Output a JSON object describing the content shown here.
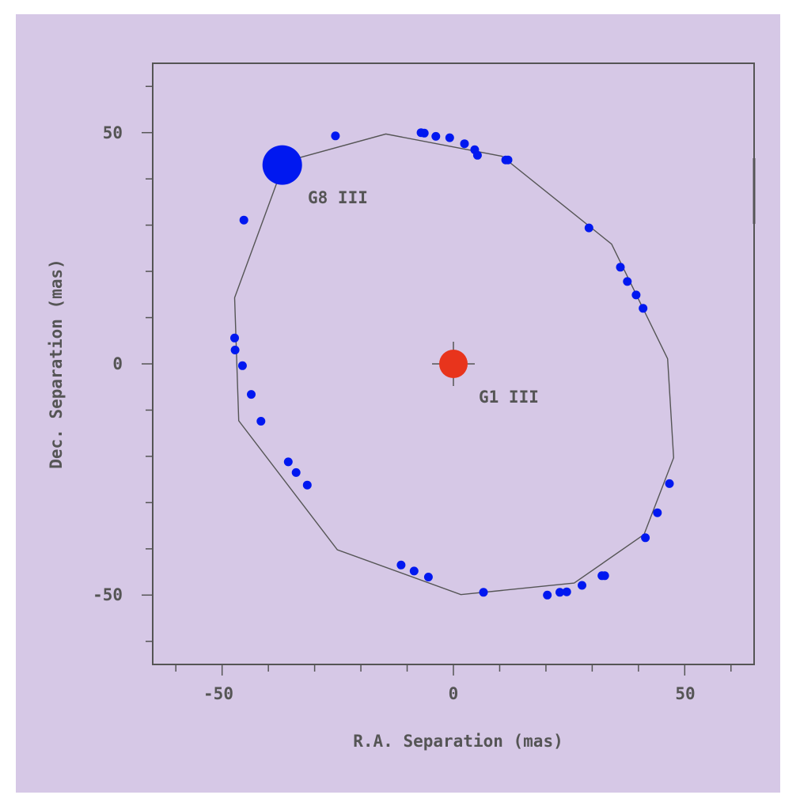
{
  "colors": {
    "background": "#d6c8e6",
    "axis": "#555555",
    "orbit": "#555555",
    "secondary": "#0018f0",
    "primary": "#e8341c"
  },
  "chart_data": {
    "type": "scatter",
    "title": "",
    "xlabel": "R.A. Separation (mas)",
    "ylabel": "Dec. Separation (mas)",
    "xlim": [
      -65,
      65
    ],
    "ylim": [
      -65,
      65
    ],
    "x_ticks": [
      -50,
      0,
      50
    ],
    "y_ticks": [
      50,
      0,
      -50
    ],
    "x_tick_labels": [
      "-50",
      "0",
      "50"
    ],
    "y_tick_labels": [
      "50",
      "0",
      "-50"
    ],
    "grid": false,
    "orbit": {
      "center": [
        0,
        0
      ],
      "vertices": [
        [
          -47.3,
          14.3
        ],
        [
          -36.5,
          43.7
        ],
        [
          -14.6,
          49.7
        ],
        [
          10.5,
          44.9
        ],
        [
          34.2,
          25.9
        ],
        [
          46.3,
          1.1
        ],
        [
          47.6,
          -20.3
        ],
        [
          41.2,
          -36.9
        ],
        [
          26.1,
          -47.4
        ],
        [
          1.6,
          -49.9
        ],
        [
          -25.1,
          -40.2
        ],
        [
          -46.4,
          -12.3
        ]
      ]
    },
    "series": [
      {
        "points": [
          [
            -25.5,
            49.3
          ],
          [
            -7.0,
            50.0
          ],
          [
            -6.3,
            49.9
          ],
          [
            -3.8,
            49.2
          ],
          [
            -0.8,
            48.9
          ],
          [
            2.4,
            47.6
          ],
          [
            4.6,
            46.3
          ],
          [
            5.2,
            45.1
          ],
          [
            11.3,
            44.1
          ],
          [
            11.8,
            44.1
          ],
          [
            29.3,
            29.4
          ],
          [
            36.1,
            20.9
          ],
          [
            37.6,
            17.8
          ],
          [
            39.5,
            14.9
          ],
          [
            41.0,
            12.0
          ],
          [
            -47.3,
            5.6
          ],
          [
            -47.2,
            3.0
          ],
          [
            -45.6,
            -0.4
          ],
          [
            -43.7,
            -6.6
          ],
          [
            -41.6,
            -12.4
          ],
          [
            -35.7,
            -21.2
          ],
          [
            -34.0,
            -23.5
          ],
          [
            -31.6,
            -26.2
          ],
          [
            -11.3,
            -43.5
          ],
          [
            -8.5,
            -44.8
          ],
          [
            -5.4,
            -46.1
          ],
          [
            6.5,
            -49.4
          ],
          [
            20.3,
            -50.0
          ],
          [
            23.0,
            -49.4
          ],
          [
            24.5,
            -49.3
          ],
          [
            27.8,
            -47.9
          ],
          [
            32.1,
            -45.8
          ],
          [
            32.7,
            -45.8
          ],
          [
            41.5,
            -37.6
          ],
          [
            44.1,
            -32.2
          ],
          [
            46.7,
            -25.9
          ],
          [
            -45.3,
            31.1
          ]
        ]
      }
    ],
    "stars": [
      {
        "label": "G8 III",
        "x": -37.0,
        "y": 43.0
      },
      {
        "label": "G1 III",
        "x": 0,
        "y": 0
      }
    ]
  }
}
